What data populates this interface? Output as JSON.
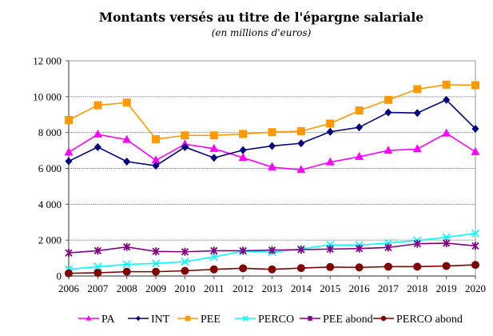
{
  "chart_data": {
    "type": "line",
    "title": "Montants versés au titre de l'épargne salariale",
    "subtitle": "(en millions d'euros)",
    "xlabel": "",
    "ylabel": "",
    "ylim": [
      0,
      12000
    ],
    "yticks": [
      0,
      2000,
      4000,
      6000,
      8000,
      10000,
      12000
    ],
    "ytick_labels": [
      "0",
      "2 000",
      "4 000",
      "6 000",
      "8 000",
      "10 000",
      "12 000"
    ],
    "grid": true,
    "legend_position": "bottom",
    "categories": [
      "2006",
      "2007",
      "2008",
      "2009",
      "2010",
      "2011",
      "2012",
      "2013",
      "2014",
      "2015",
      "2016",
      "2017",
      "2018",
      "2019",
      "2020"
    ],
    "series": [
      {
        "name": "PA",
        "color": "#FF00FF",
        "marker": "triangle",
        "values": [
          6900,
          7900,
          7600,
          6450,
          7350,
          7100,
          6600,
          6070,
          5920,
          6350,
          6650,
          7000,
          7080,
          7960,
          6920
        ]
      },
      {
        "name": "INT",
        "color": "#000080",
        "marker": "diamond",
        "values": [
          6400,
          7190,
          6380,
          6150,
          7190,
          6590,
          7020,
          7250,
          7400,
          8040,
          8290,
          9120,
          9090,
          9820,
          8210
        ]
      },
      {
        "name": "PEE",
        "color": "#FF9900",
        "marker": "square",
        "values": [
          8700,
          9520,
          9670,
          7630,
          7840,
          7840,
          7920,
          8020,
          8080,
          8500,
          9230,
          9820,
          10420,
          10670,
          10640
        ]
      },
      {
        "name": "PERCO",
        "color": "#00FFFF",
        "marker": "x",
        "values": [
          370,
          520,
          650,
          700,
          800,
          1070,
          1380,
          1330,
          1510,
          1740,
          1720,
          1840,
          1980,
          2160,
          2380
        ]
      },
      {
        "name": "PEE abond",
        "color": "#800080",
        "marker": "star",
        "values": [
          1290,
          1410,
          1620,
          1370,
          1350,
          1410,
          1410,
          1440,
          1470,
          1500,
          1530,
          1590,
          1800,
          1830,
          1680
        ]
      },
      {
        "name": "PERCO abond",
        "color": "#800000",
        "marker": "circle",
        "values": [
          150,
          180,
          240,
          240,
          290,
          370,
          430,
          370,
          440,
          500,
          480,
          520,
          520,
          560,
          620
        ]
      }
    ]
  }
}
